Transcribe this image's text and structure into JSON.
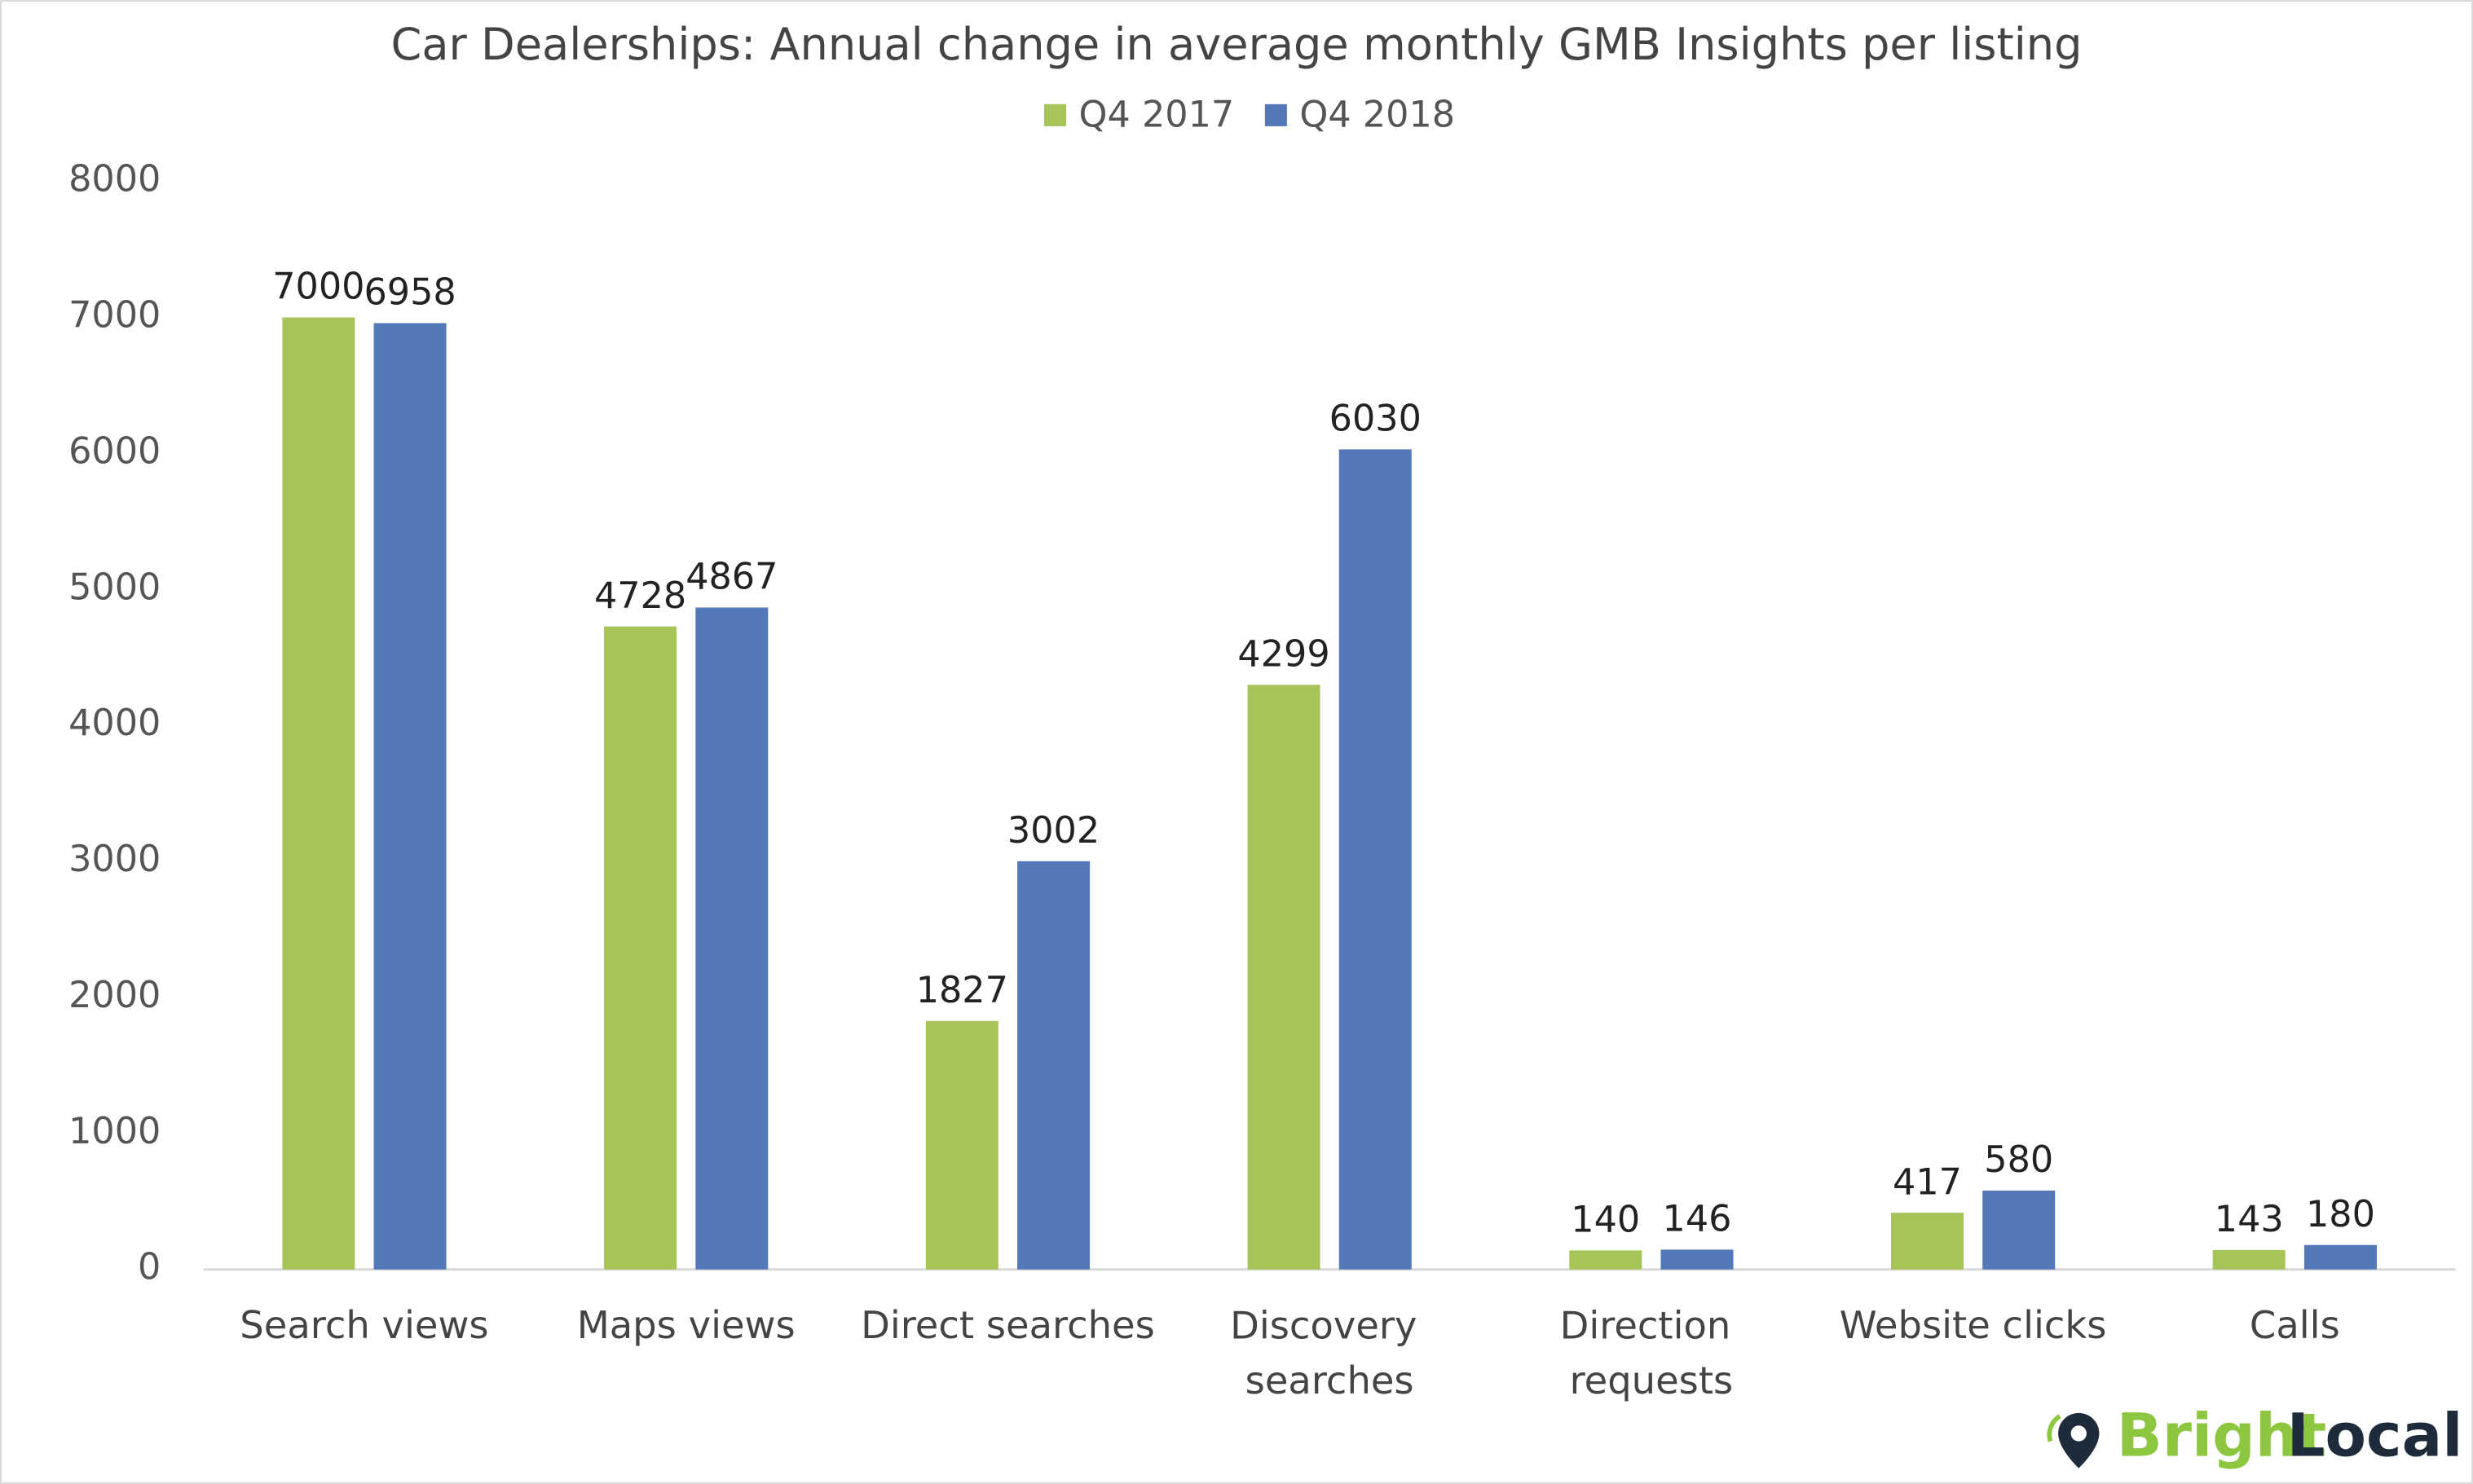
{
  "chart_data": {
    "type": "bar",
    "title": "Car Dealerships: Annual change in average monthly GMB Insights per listing",
    "categories": [
      "Search views",
      "Maps views",
      "Direct searches",
      "Discovery searches",
      "Direction requests",
      "Website clicks",
      "Calls"
    ],
    "series": [
      {
        "name": "Q4 2017",
        "color": "#a5c558",
        "values": [
          7000,
          4728,
          1827,
          4299,
          140,
          417,
          143
        ]
      },
      {
        "name": "Q4 2018",
        "color": "#5479b8",
        "values": [
          6958,
          4867,
          3002,
          6030,
          146,
          580,
          180
        ]
      }
    ],
    "ylim": [
      0,
      8000
    ],
    "yticks": [
      0,
      1000,
      2000,
      3000,
      4000,
      5000,
      6000,
      7000,
      8000
    ],
    "grid": false,
    "legend": "top"
  },
  "logo": {
    "bright": "Bright",
    "local": "Local"
  }
}
